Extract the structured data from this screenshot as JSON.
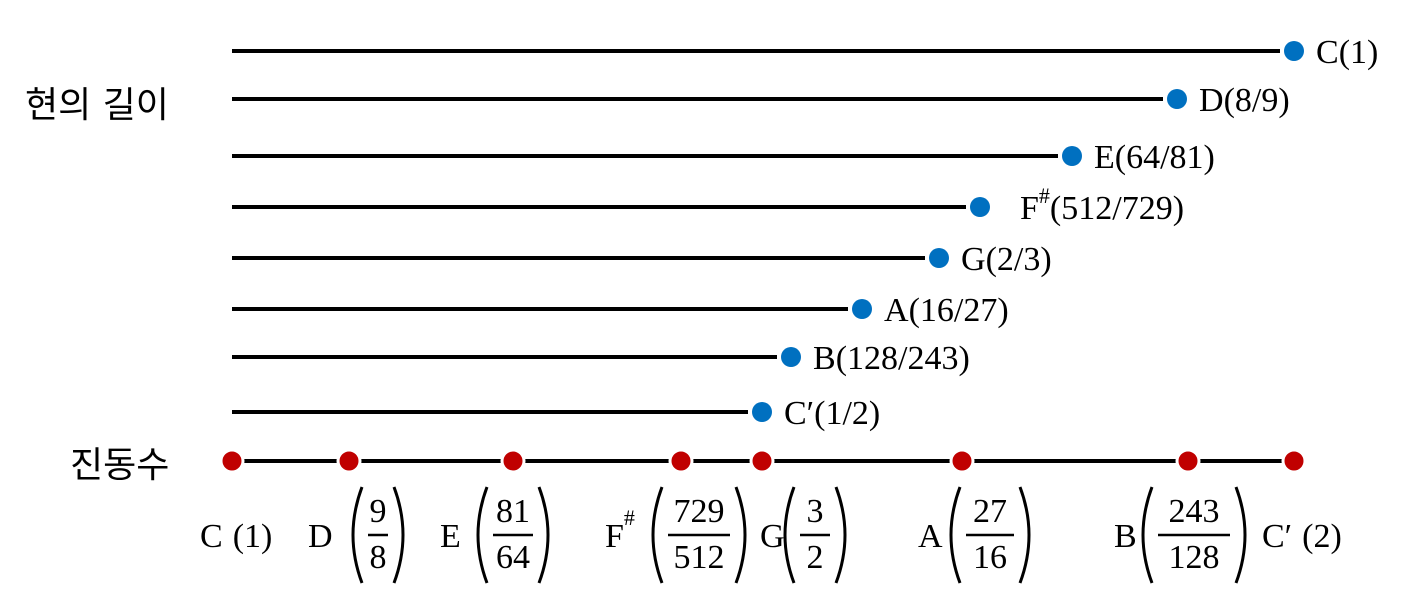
{
  "string_length": {
    "label": "현의 길이",
    "strings": [
      {
        "note": "C",
        "ratio": "(1)"
      },
      {
        "note": "D",
        "ratio": "(8/9)"
      },
      {
        "note": "E",
        "ratio": "(64/81)"
      },
      {
        "note": "F",
        "sup": "#",
        "ratio": "(512/729)"
      },
      {
        "note": "G",
        "ratio": "(2/3)"
      },
      {
        "note": "A",
        "ratio": "(16/27)"
      },
      {
        "note": "B",
        "ratio": "(128/243)"
      },
      {
        "note": "C′",
        "ratio": "(1/2)"
      }
    ]
  },
  "frequency": {
    "label": "진동수",
    "notes": [
      {
        "note": "C",
        "value": "(1)"
      },
      {
        "note": "D",
        "num": "9",
        "den": "8"
      },
      {
        "note": "E",
        "num": "81",
        "den": "64"
      },
      {
        "note": "F",
        "sup": "#",
        "num": "729",
        "den": "512"
      },
      {
        "note": "G",
        "num": "3",
        "den": "2"
      },
      {
        "note": "A",
        "num": "27",
        "den": "16"
      },
      {
        "note": "B",
        "num": "243",
        "den": "128"
      },
      {
        "note": "C′",
        "value": "(2)"
      }
    ]
  }
}
